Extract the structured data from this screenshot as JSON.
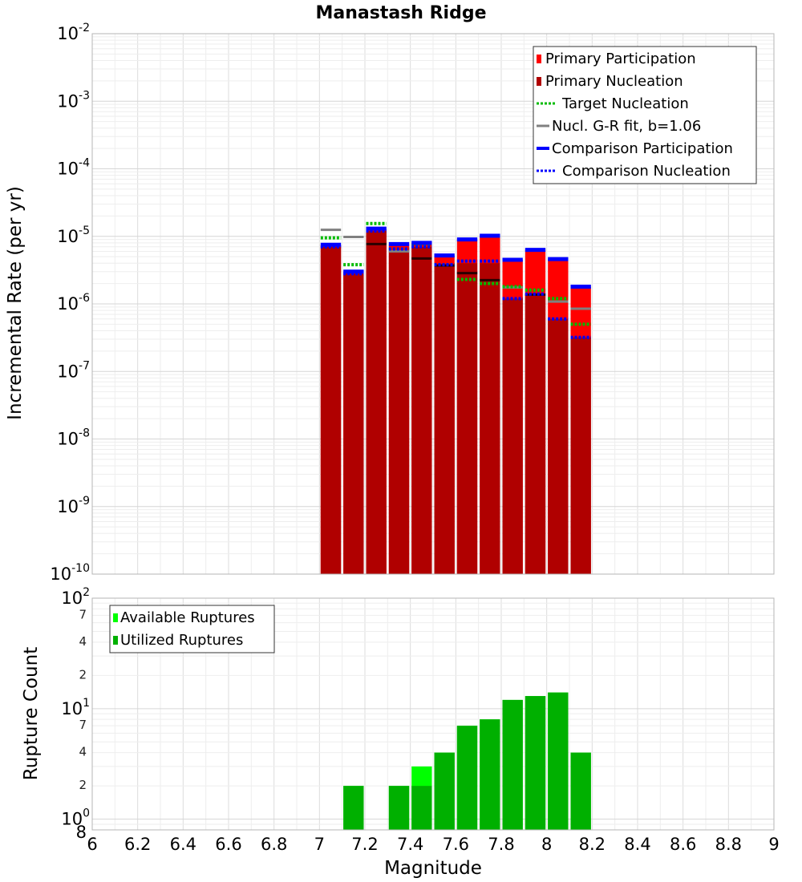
{
  "chart_data": [
    {
      "type": "bar",
      "title": "Manastash Ridge",
      "xlabel": "",
      "ylabel": "Incremental Rate (per yr)",
      "yscale": "log",
      "xlim": [
        6,
        9
      ],
      "ylim": [
        1e-10,
        0.01
      ],
      "grid": true,
      "legend_position": "top-right",
      "bin_width": 0.1,
      "y_ticks": [
        {
          "base": "10",
          "exp": "-10"
        },
        {
          "base": "10",
          "exp": "-9"
        },
        {
          "base": "10",
          "exp": "-8"
        },
        {
          "base": "10",
          "exp": "-7"
        },
        {
          "base": "10",
          "exp": "-6"
        },
        {
          "base": "10",
          "exp": "-5"
        },
        {
          "base": "10",
          "exp": "-4"
        },
        {
          "base": "10",
          "exp": "-3"
        },
        {
          "base": "10",
          "exp": "-2"
        }
      ],
      "x": [
        7.05,
        7.15,
        7.25,
        7.35,
        7.45,
        7.55,
        7.65,
        7.75,
        7.85,
        7.95,
        8.05,
        8.15
      ],
      "series": [
        {
          "name": "Primary Participation",
          "style": "bar",
          "color": "#ff0000",
          "values": [
            7.5e-06,
            3e-06,
            1.3e-05,
            7.7e-06,
            8e-06,
            5.2e-06,
            9e-06,
            1.02e-05,
            4.5e-06,
            6.3e-06,
            4.6e-06,
            1.8e-06
          ]
        },
        {
          "name": "Primary Nucleation",
          "style": "bar",
          "color": "#b00000",
          "values": [
            7e-06,
            2.8e-06,
            1.2e-05,
            6e-06,
            7e-06,
            3.8e-06,
            4e-06,
            4e-06,
            1.2e-06,
            1.4e-06,
            6e-07,
            3.2e-07
          ]
        },
        {
          "name": "Target Nucleation",
          "style": "dotted",
          "color": "#00bb00",
          "values": [
            9.5e-06,
            3.8e-06,
            1.55e-05,
            6.5e-06,
            7.5e-06,
            3.8e-06,
            2.3e-06,
            2e-06,
            1.8e-06,
            1.6e-06,
            1.2e-06,
            5e-07
          ]
        },
        {
          "name": "Nucl. G-R fit, b=1.06",
          "style": "solid",
          "color": "#808080",
          "values": [
            1.25e-05,
            9.8e-06,
            7.7e-06,
            6e-06,
            4.7e-06,
            3.7e-06,
            2.85e-06,
            2.25e-06,
            1.75e-06,
            1.37e-06,
            1.08e-06,
            8.5e-07
          ]
        },
        {
          "name": "Comparison Participation",
          "style": "solid-thick",
          "color": "#0000ff",
          "values": [
            7.5e-06,
            3e-06,
            1.3e-05,
            7.7e-06,
            8e-06,
            5.2e-06,
            9e-06,
            1.02e-05,
            4.5e-06,
            6.3e-06,
            4.6e-06,
            1.8e-06
          ]
        },
        {
          "name": "Comparison Nucleation",
          "style": "dotted",
          "color": "#0000ff",
          "values": [
            7e-06,
            2.8e-06,
            1.2e-05,
            6.5e-06,
            7e-06,
            3.8e-06,
            4.3e-06,
            4.3e-06,
            1.2e-06,
            1.4e-06,
            6e-07,
            3.2e-07
          ]
        }
      ]
    },
    {
      "type": "bar",
      "title": "",
      "xlabel": "Magnitude",
      "ylabel": "Rupture Count",
      "yscale": "log",
      "xlim": [
        6,
        9
      ],
      "ylim": [
        0.8,
        100
      ],
      "grid": true,
      "legend_position": "top-left",
      "bin_width": 0.1,
      "x_ticks": [
        "6",
        "6.2",
        "6.4",
        "6.6",
        "6.8",
        "7",
        "7.2",
        "7.4",
        "7.6",
        "7.8",
        "8",
        "8.2",
        "8.4",
        "8.6",
        "8.8",
        "9"
      ],
      "y_ticks": [
        {
          "base": "10",
          "exp": "0"
        },
        {
          "base": "10",
          "exp": "1"
        },
        {
          "base": "10",
          "exp": "2"
        }
      ],
      "y_minor_labels": [
        "8",
        "2",
        "4",
        "7",
        "2",
        "4",
        "7"
      ],
      "x": [
        7.05,
        7.15,
        7.25,
        7.35,
        7.45,
        7.55,
        7.65,
        7.75,
        7.85,
        7.95,
        8.05,
        8.15
      ],
      "series": [
        {
          "name": "Available Ruptures",
          "style": "bar",
          "color": "#00ff00",
          "values": [
            0,
            2,
            0,
            2,
            3,
            4,
            7,
            8,
            12,
            13,
            14,
            4
          ]
        },
        {
          "name": "Utilized Ruptures",
          "style": "bar",
          "color": "#00b000",
          "values": [
            0,
            2,
            0,
            2,
            2,
            4,
            7,
            8,
            12,
            13,
            14,
            4
          ]
        }
      ]
    }
  ]
}
